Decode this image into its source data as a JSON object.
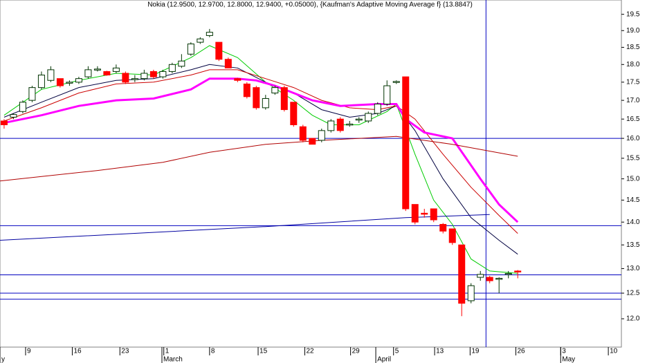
{
  "chart_data": {
    "type": "candlestick",
    "title": "Nokia (12.9500, 12.9700, 12.8000, 12.9400, +0.05000), {Kaufman's Adaptive Moving Average f} (13.8847)",
    "log_scale": true,
    "ylim": [
      11.47,
      19.95
    ],
    "yticks": [
      {
        "value": 12,
        "label": "12.0"
      },
      12.5,
      {
        "value": 13,
        "label": "13.0"
      },
      13.5,
      {
        "value": 14,
        "label": "14.0"
      },
      14.5,
      {
        "value": 15,
        "label": "15.0"
      },
      15.5,
      {
        "value": 16,
        "label": "16.0"
      },
      16.5,
      {
        "value": 17,
        "label": "17.0"
      },
      17.5,
      {
        "value": 18,
        "label": "18.0"
      },
      18.5,
      {
        "value": 19,
        "label": "19.0"
      },
      19.5
    ],
    "xlim": [
      -0.44,
      66.1
    ],
    "xticks": [
      {
        "value": 2.3,
        "label": "9"
      },
      {
        "value": 7.3,
        "label": "16"
      },
      {
        "value": 12.4,
        "label": "23"
      },
      {
        "value": 17.1,
        "label": "1"
      },
      {
        "value": 22,
        "label": "8"
      },
      {
        "value": 27.2,
        "label": "15"
      },
      {
        "value": 32.2,
        "label": "22"
      },
      {
        "value": 37.1,
        "label": "29"
      },
      {
        "value": 41.7,
        "label": "5"
      },
      {
        "value": 46.1,
        "label": "13"
      },
      {
        "value": 49.9,
        "label": "19"
      },
      {
        "value": 54.8,
        "label": "26"
      },
      {
        "value": 59.6,
        "label": "3"
      },
      {
        "value": 64.7,
        "label": "10"
      }
    ],
    "months": [
      {
        "value": -0.44,
        "label": "y"
      },
      {
        "value": 16.9,
        "label": "March"
      },
      {
        "value": 39.8,
        "label": "April"
      },
      {
        "value": 59.6,
        "label": "May"
      }
    ],
    "up_color": "#ffffff",
    "down_color": "#ff0000",
    "outline_color": "#003300",
    "candles": {
      "x": [
        0,
        1,
        2,
        3,
        4,
        5,
        6,
        7,
        8,
        9,
        10,
        11,
        12,
        13,
        14,
        15,
        16,
        17,
        18,
        19,
        20,
        21,
        22,
        23,
        24,
        25,
        26,
        27,
        28,
        29,
        30,
        31,
        32,
        33,
        34,
        35,
        36,
        37,
        38,
        39,
        40,
        41,
        42,
        43,
        44,
        45,
        46,
        47,
        48,
        49,
        50,
        51,
        52,
        53,
        54,
        55
      ],
      "open": [
        16.45,
        16.55,
        16.7,
        17.0,
        17.35,
        17.55,
        17.6,
        17.48,
        17.5,
        17.65,
        17.85,
        17.8,
        17.8,
        17.75,
        17.58,
        17.6,
        17.8,
        17.65,
        17.8,
        17.95,
        18.3,
        18.65,
        18.85,
        18.65,
        18.15,
        17.6,
        17.45,
        17.35,
        16.8,
        17.2,
        17.35,
        16.95,
        16.3,
        16.0,
        15.95,
        16.2,
        16.5,
        16.35,
        16.48,
        16.45,
        16.65,
        16.9,
        17.5,
        17.65,
        14.4,
        14.2,
        14.3,
        13.95,
        13.85,
        13.5,
        12.35,
        12.82,
        12.82,
        12.78,
        12.88,
        12.95
      ],
      "high": [
        16.5,
        16.65,
        17.0,
        17.4,
        17.8,
        17.95,
        17.6,
        17.55,
        17.65,
        17.95,
        17.95,
        17.82,
        18.0,
        17.8,
        17.7,
        17.85,
        17.85,
        17.85,
        18.05,
        18.3,
        18.65,
        18.8,
        19.05,
        18.65,
        18.2,
        17.62,
        17.5,
        17.4,
        17.15,
        17.4,
        17.4,
        16.95,
        16.35,
        16.0,
        16.25,
        16.5,
        16.55,
        16.45,
        16.55,
        16.7,
        16.95,
        17.55,
        17.55,
        17.65,
        14.4,
        14.3,
        14.3,
        13.98,
        13.85,
        13.5,
        12.7,
        12.95,
        12.85,
        12.82,
        12.95,
        12.97
      ],
      "low": [
        16.25,
        16.5,
        16.65,
        16.95,
        17.3,
        17.5,
        17.35,
        17.4,
        17.45,
        17.6,
        17.8,
        17.68,
        17.75,
        17.45,
        17.5,
        17.55,
        17.6,
        17.6,
        17.75,
        17.9,
        18.25,
        18.6,
        18.8,
        18.1,
        17.9,
        17.5,
        17.05,
        16.75,
        16.75,
        17.15,
        16.7,
        16.3,
        15.9,
        15.85,
        15.9,
        16.15,
        16.15,
        16.3,
        16.4,
        16.4,
        16.6,
        16.85,
        17.45,
        14.25,
        13.95,
        14.1,
        14.0,
        13.75,
        13.5,
        12.05,
        12.3,
        12.75,
        12.7,
        12.5,
        12.8,
        12.8
      ],
      "close": [
        16.35,
        16.62,
        16.95,
        17.35,
        17.7,
        17.85,
        17.4,
        17.5,
        17.6,
        17.85,
        17.87,
        17.7,
        17.9,
        17.5,
        17.6,
        17.75,
        17.65,
        17.8,
        18.0,
        18.1,
        18.6,
        18.75,
        18.95,
        18.15,
        17.9,
        17.55,
        17.1,
        16.8,
        17.05,
        17.35,
        16.75,
        16.35,
        15.95,
        15.85,
        16.2,
        16.45,
        16.2,
        16.37,
        16.5,
        16.65,
        16.9,
        17.4,
        17.52,
        14.3,
        14.0,
        14.18,
        14.05,
        13.8,
        13.55,
        12.3,
        12.65,
        12.88,
        12.75,
        12.8,
        12.9,
        12.94
      ]
    },
    "series": [
      {
        "color": "#00cc00",
        "width": 1,
        "x": [
          0,
          4,
          8,
          12,
          16,
          20,
          22,
          25,
          28,
          31,
          33,
          35,
          38,
          41,
          42,
          44,
          46,
          48,
          50,
          52,
          55
        ],
        "values": [
          16.6,
          17.3,
          17.55,
          17.75,
          17.7,
          18.2,
          18.55,
          18.2,
          17.5,
          17.0,
          16.6,
          16.35,
          16.35,
          16.7,
          16.9,
          15.6,
          14.5,
          13.95,
          13.2,
          12.95,
          12.9
        ]
      },
      {
        "color": "#000040",
        "width": 1,
        "x": [
          0,
          4,
          8,
          12,
          16,
          20,
          22,
          25,
          28,
          31,
          34,
          37,
          40,
          42,
          44,
          47,
          50,
          53,
          55
        ],
        "values": [
          16.55,
          16.95,
          17.35,
          17.55,
          17.6,
          17.85,
          18.0,
          17.9,
          17.5,
          17.2,
          16.75,
          16.55,
          16.65,
          16.85,
          16.2,
          15.0,
          14.1,
          13.6,
          13.3
        ]
      },
      {
        "color": "#cc0000",
        "width": 1,
        "x": [
          0,
          4,
          8,
          12,
          16,
          20,
          22,
          25,
          28,
          31,
          34,
          37,
          40,
          42,
          44,
          47,
          50,
          53,
          55
        ],
        "values": [
          16.45,
          16.8,
          17.2,
          17.45,
          17.5,
          17.7,
          17.85,
          17.85,
          17.6,
          17.35,
          17.0,
          16.8,
          16.75,
          16.85,
          16.5,
          15.6,
          14.8,
          14.15,
          13.75
        ]
      },
      {
        "color": "#ff00ff",
        "width": 3,
        "x": [
          0,
          4,
          8,
          12,
          16,
          20,
          22,
          25,
          27,
          29,
          31,
          33,
          36,
          40,
          42,
          43,
          45,
          48,
          51,
          53,
          55
        ],
        "values": [
          16.4,
          16.6,
          16.85,
          17.0,
          17.05,
          17.3,
          17.6,
          17.6,
          17.55,
          17.4,
          17.2,
          17.0,
          16.85,
          16.9,
          16.9,
          16.5,
          16.15,
          16.0,
          15.0,
          14.4,
          14.0
        ]
      },
      {
        "color": "#b00000",
        "width": 1,
        "x": [
          -0.44,
          10,
          17,
          22,
          28,
          34,
          42,
          48,
          55
        ],
        "values": [
          14.95,
          15.2,
          15.4,
          15.65,
          15.85,
          15.95,
          16.05,
          15.85,
          15.55
        ]
      },
      {
        "color": "#0000a0",
        "width": 1,
        "x": [
          -0.44,
          28,
          43,
          52
        ],
        "values": [
          13.6,
          13.9,
          14.1,
          14.17
        ]
      }
    ],
    "hlines": [
      16.0,
      13.92,
      12.87,
      12.5,
      12.38
    ],
    "vline": 51.6,
    "line_color": "#0000c0"
  }
}
